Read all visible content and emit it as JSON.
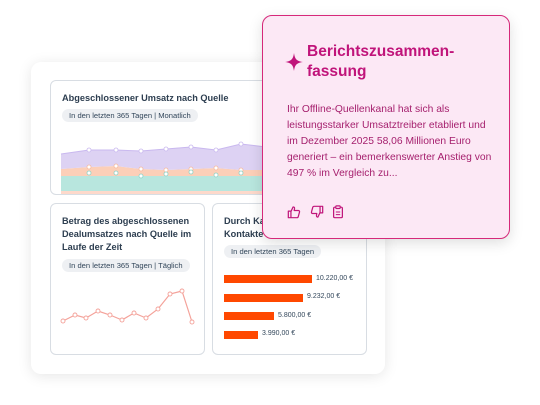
{
  "revenue_card": {
    "title": "Abgeschlossener Umsatz nach Quelle",
    "filter": "In den letzten 365 Tagen | Monatlich"
  },
  "deal_card": {
    "title": "Betrag des abgeschlossenen Dealumsatzes nach Quelle im Laufe der Zeit",
    "filter": "In den letzten 365 Tagen | Täglich"
  },
  "contacts_card": {
    "title_line1": "Durch Ka",
    "title_line2": "Kontakte",
    "filter": "In den letzten 365 Tagen",
    "bars": [
      {
        "label": "10.220,00 €",
        "value": 10220
      },
      {
        "label": "9.232,00 €",
        "value": 9232
      },
      {
        "label": "5.800,00 €",
        "value": 5800
      },
      {
        "label": "3.990,00 €",
        "value": 3990
      }
    ],
    "bar_color": "#ff4800"
  },
  "summary": {
    "title": "Berichtszusammen­fassung",
    "body": "Ihr Offline-Quellenkanal hat sich als leistungsstarker Umsatztreiber etabliert und im Dezember 2025 58,06 Millionen Euro generiert – ein bemerkenswerter Anstieg von 497 % im Vergleich zu...",
    "accent_color": "#c0147a",
    "icons": [
      "sparkle-icon",
      "thumbs-up-icon",
      "thumbs-down-icon",
      "copy-icon"
    ]
  }
}
